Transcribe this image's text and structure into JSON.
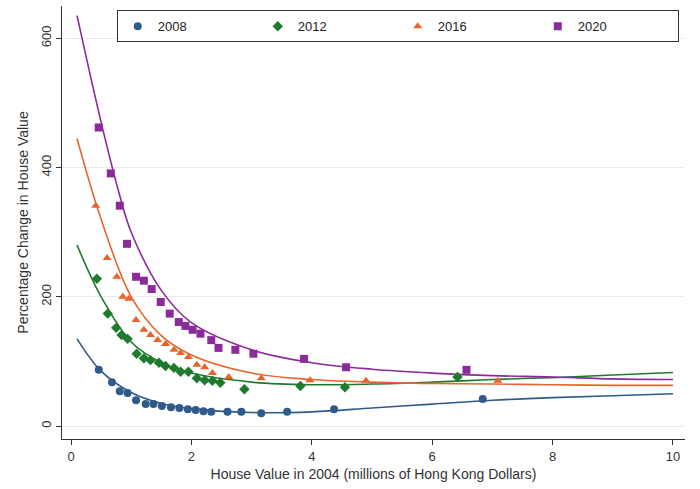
{
  "chart_data": {
    "type": "scatter",
    "x_label": "House Value in 2004 (millions of Hong Kong Dollars)",
    "y_label": "Percentage Change in House Value",
    "xlim": [
      -0.15,
      10.2
    ],
    "ylim": [
      -20,
      650
    ],
    "xticks": [
      0,
      2,
      4,
      6,
      8,
      10
    ],
    "yticks": [
      0,
      200,
      400,
      600
    ],
    "grid": true,
    "legend": "top right",
    "series": [
      {
        "name": "2008",
        "color": "#2f5b8a",
        "marker": "circle",
        "line_style": "solid",
        "x": [
          0.46,
          0.68,
          0.81,
          0.94,
          1.08,
          1.24,
          1.37,
          1.51,
          1.66,
          1.8,
          1.94,
          2.07,
          2.2,
          2.33,
          2.6,
          2.83,
          3.16,
          3.59,
          4.37,
          6.84
        ],
        "values": [
          87,
          68,
          54,
          51,
          40,
          34,
          34,
          31,
          29,
          28,
          26,
          25,
          23,
          22,
          22,
          22,
          20,
          22,
          26,
          42
        ],
        "fit": {
          "x": [
            0.1,
            0.5,
            1,
            1.5,
            2,
            3,
            4,
            5,
            6,
            7,
            8,
            9,
            10
          ],
          "values": [
            135,
            85,
            52,
            35,
            27,
            21,
            22,
            28,
            34,
            40,
            44,
            47,
            50
          ]
        }
      },
      {
        "name": "2012",
        "color": "#1e7b2e",
        "marker": "diamond",
        "line_style": "solid",
        "x": [
          0.43,
          0.61,
          0.75,
          0.84,
          0.94,
          1.09,
          1.21,
          1.32,
          1.46,
          1.57,
          1.71,
          1.82,
          1.95,
          2.09,
          2.22,
          2.35,
          2.48,
          2.88,
          3.81,
          4.55,
          6.42
        ],
        "values": [
          228,
          174,
          152,
          141,
          135,
          112,
          105,
          102,
          98,
          93,
          90,
          84,
          84,
          74,
          71,
          70,
          67,
          57,
          62,
          60,
          76
        ],
        "fit": {
          "x": [
            0.1,
            0.5,
            1,
            1.5,
            2,
            3,
            4,
            5,
            6,
            7,
            8,
            9,
            10
          ],
          "values": [
            280,
            200,
            130,
            98,
            82,
            68,
            64,
            65,
            68,
            72,
            75,
            79,
            83
          ]
        }
      },
      {
        "name": "2016",
        "color": "#e8642c",
        "marker": "triangle-up",
        "line_style": "solid",
        "x": [
          0.41,
          0.6,
          0.76,
          0.86,
          0.96,
          1.08,
          1.21,
          1.32,
          1.44,
          1.57,
          1.71,
          1.82,
          1.95,
          2.09,
          2.22,
          2.35,
          2.62,
          3.16,
          3.97,
          4.9,
          7.09
        ],
        "values": [
          341,
          260,
          231,
          200,
          197,
          164,
          149,
          141,
          133,
          127,
          118,
          113,
          107,
          95,
          91,
          82,
          76,
          74,
          71,
          70,
          70
        ],
        "fit": {
          "x": [
            0.1,
            0.5,
            1,
            1.5,
            2,
            3,
            4,
            5,
            6,
            7,
            8,
            9,
            10
          ],
          "values": [
            445,
            320,
            200,
            140,
            110,
            82,
            72,
            68,
            66,
            65,
            64,
            63,
            63
          ]
        }
      },
      {
        "name": "2020",
        "color": "#8b2b9b",
        "marker": "square",
        "line_style": "solid",
        "x": [
          0.46,
          0.66,
          0.81,
          0.93,
          1.08,
          1.21,
          1.34,
          1.49,
          1.64,
          1.79,
          1.9,
          2.02,
          2.15,
          2.33,
          2.45,
          2.73,
          3.03,
          3.87,
          4.57,
          6.57
        ],
        "values": [
          462,
          391,
          341,
          282,
          231,
          225,
          212,
          192,
          174,
          161,
          155,
          149,
          143,
          133,
          121,
          118,
          112,
          104,
          91,
          87
        ],
        "fit": {
          "x": [
            0.1,
            0.5,
            0.8,
            1,
            1.5,
            2,
            3,
            4,
            5,
            6,
            7,
            8,
            9,
            10
          ],
          "values": [
            635,
            470,
            360,
            300,
            210,
            160,
            118,
            98,
            88,
            82,
            78,
            76,
            73,
            72
          ]
        }
      }
    ]
  }
}
